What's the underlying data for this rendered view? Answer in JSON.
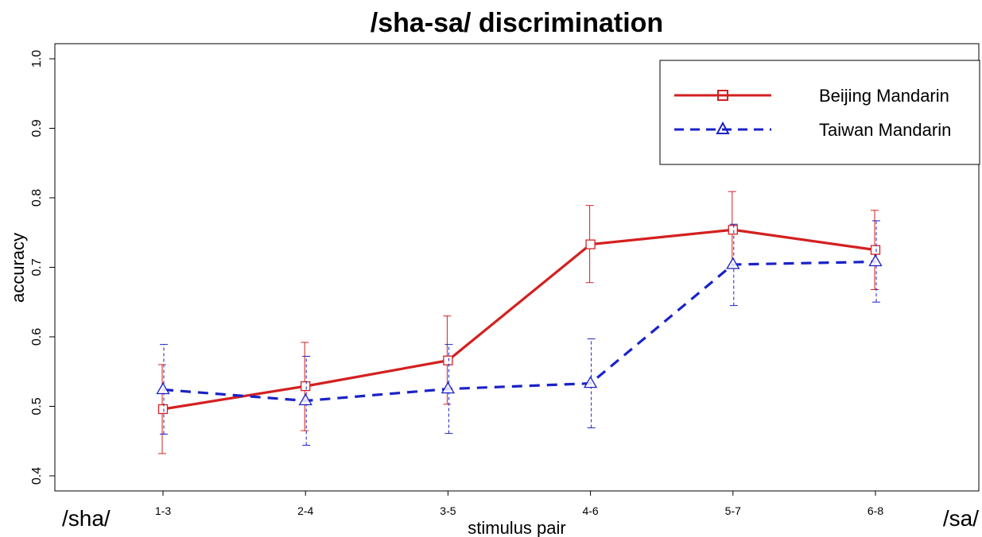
{
  "chart_data": {
    "type": "line",
    "title": "/sha-sa/ discrimination",
    "xlabel": "stimulus pair",
    "ylabel": "accuracy",
    "categories": [
      "1-3",
      "2-4",
      "3-5",
      "4-6",
      "5-7",
      "6-8"
    ],
    "endpoint_labels": {
      "left": "/sha/",
      "right": "/sa/"
    },
    "ylim": [
      0.4,
      1.0
    ],
    "yticks": [
      "0.4",
      "0.5",
      "0.6",
      "0.7",
      "0.8",
      "0.9",
      "1.0"
    ],
    "grid": false,
    "legend_position": "top-right",
    "series": [
      {
        "name": "Beijing Mandarin",
        "color": "#d42020",
        "marker": "square",
        "line_style": "solid",
        "values": [
          0.496,
          0.529,
          0.566,
          0.733,
          0.754,
          0.725
        ],
        "error_low": [
          0.432,
          0.465,
          0.503,
          0.678,
          0.699,
          0.668
        ],
        "error_high": [
          0.56,
          0.592,
          0.63,
          0.789,
          0.809,
          0.782
        ]
      },
      {
        "name": "Taiwan Mandarin",
        "color": "#1a22c8",
        "marker": "triangle",
        "line_style": "dashed",
        "values": [
          0.524,
          0.508,
          0.525,
          0.533,
          0.704,
          0.708
        ],
        "error_low": [
          0.46,
          0.444,
          0.461,
          0.469,
          0.645,
          0.65
        ],
        "error_high": [
          0.589,
          0.572,
          0.589,
          0.597,
          0.762,
          0.767
        ]
      }
    ]
  }
}
